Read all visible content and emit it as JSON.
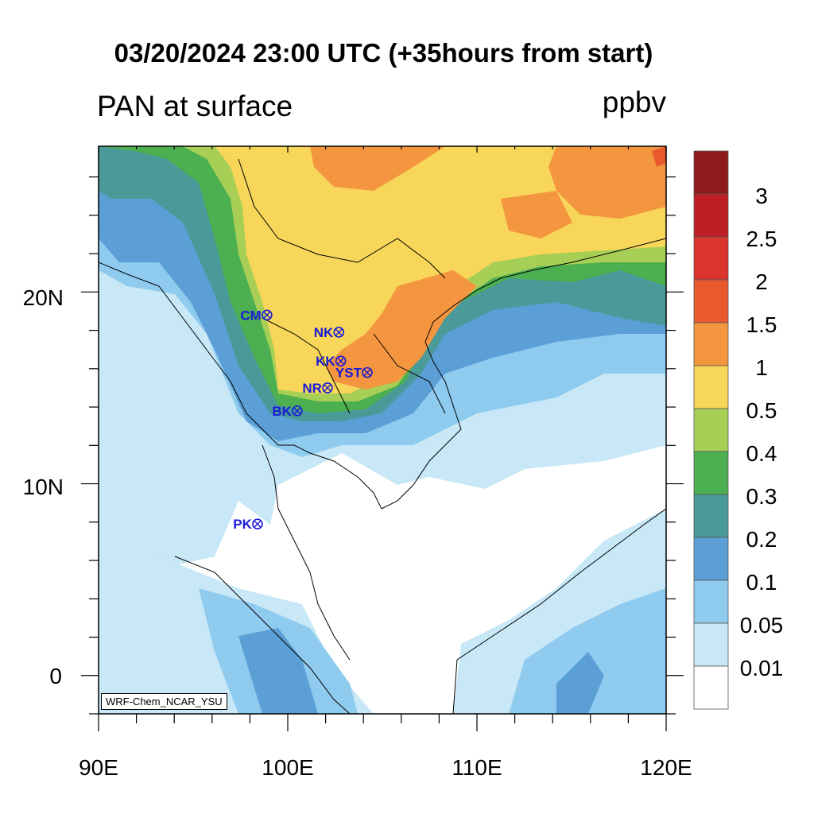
{
  "title": "03/20/2024 23:00 UTC (+35hours from start)",
  "subtitle": "PAN at surface",
  "units": "ppbv",
  "credit": "WRF-Chem_NCAR_YSU",
  "x_axis": {
    "labels": [
      "90E",
      "100E",
      "110E",
      "120E"
    ]
  },
  "y_axis": {
    "labels": [
      "20N",
      "10N",
      "0"
    ]
  },
  "colorbar": {
    "labels": [
      "3",
      "2.5",
      "2",
      "1.5",
      "1",
      "0.5",
      "0.4",
      "0.3",
      "0.2",
      "0.1",
      "0.05",
      "0.01"
    ],
    "colors": [
      "#8e1a1e",
      "#bf1f24",
      "#dc332c",
      "#e85a2e",
      "#f4953f",
      "#f7d65a",
      "#a7cf55",
      "#4caf50",
      "#4b9a9a",
      "#5b9fd6",
      "#8ecbef",
      "#c8e7f7",
      "#ffffff"
    ]
  },
  "stations": [
    {
      "name": "CM",
      "lon": 98.9,
      "lat": 18.8
    },
    {
      "name": "NK",
      "lon": 102.7,
      "lat": 17.9
    },
    {
      "name": "KK",
      "lon": 102.8,
      "lat": 16.4
    },
    {
      "name": "YST",
      "lon": 104.2,
      "lat": 15.8
    },
    {
      "name": "NR",
      "lon": 102.1,
      "lat": 15.0
    },
    {
      "name": "BK",
      "lon": 100.5,
      "lat": 13.8
    },
    {
      "name": "PK",
      "lon": 98.4,
      "lat": 7.9
    }
  ]
}
